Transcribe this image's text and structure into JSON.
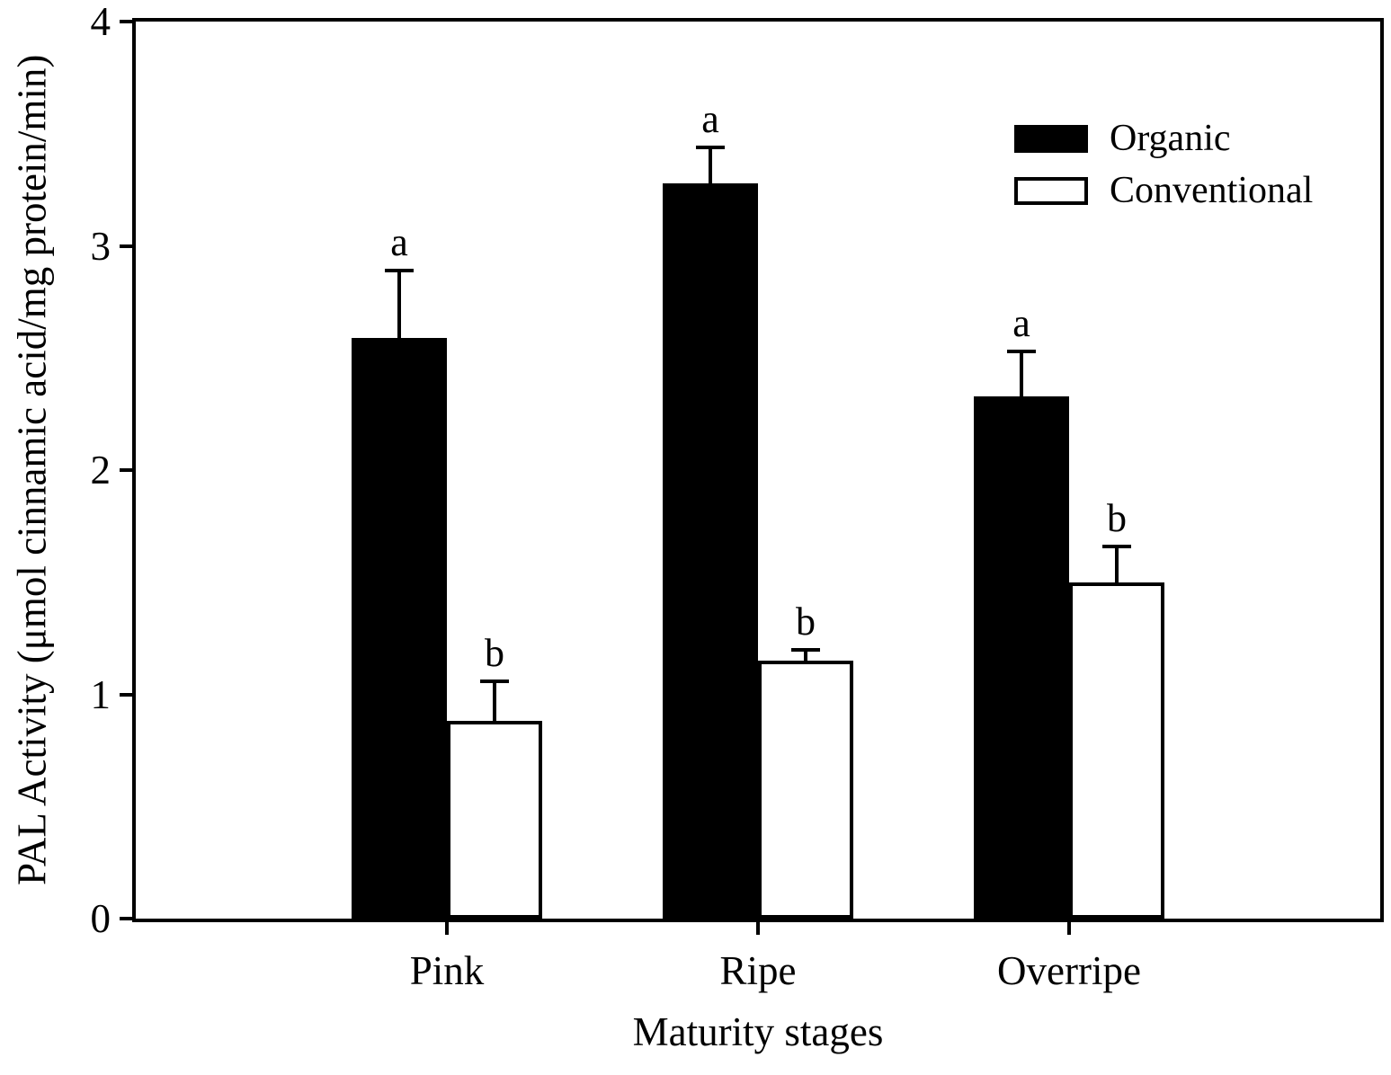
{
  "chart_data": {
    "type": "bar",
    "title": "",
    "xlabel": "Maturity stages",
    "ylabel": "PAL Activity (μmol cinnamic acid/mg protein/min)",
    "categories": [
      "Pink",
      "Ripe",
      "Overripe"
    ],
    "series": [
      {
        "name": "Organic",
        "fill": "#000000",
        "values": [
          2.59,
          3.28,
          2.33
        ],
        "errors": [
          0.3,
          0.16,
          0.2
        ],
        "sig_letters": [
          "a",
          "a",
          "a"
        ]
      },
      {
        "name": "Conventional",
        "fill": "#ffffff",
        "values": [
          0.88,
          1.15,
          1.5
        ],
        "errors": [
          0.18,
          0.05,
          0.16
        ],
        "sig_letters": [
          "b",
          "b",
          "b"
        ]
      }
    ],
    "ylim": [
      0,
      4
    ],
    "yticks": [
      0,
      1,
      2,
      3,
      4
    ],
    "grid": false,
    "error_bars": "upper-only",
    "legend_position": "top-right-inside",
    "colors": {
      "axis": "#000000",
      "background": "#ffffff",
      "organic_bar": "#000000",
      "conventional_bar": "#ffffff"
    }
  }
}
